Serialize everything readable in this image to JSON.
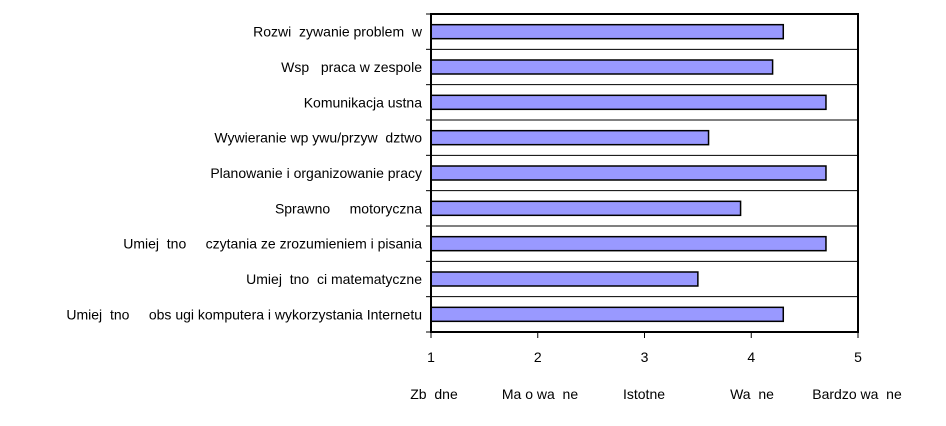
{
  "chart_data": {
    "type": "bar",
    "orientation": "horizontal",
    "categories": [
      "Rozwi  zywanie problem  w",
      "Wsp   praca w zespole",
      "Komunikacja ustna",
      "Wywieranie wp ywu/przyw  dztwo",
      "Planowanie i organizowanie pracy",
      "Sprawno     motoryczna",
      "Umiej  tno     czytania ze zrozumieniem i pisania",
      "Umiej  tno  ci matematyczne",
      "Umiej  tno     obs ugi komputera i wykorzystania Internetu"
    ],
    "values": [
      4.3,
      4.2,
      4.7,
      3.6,
      4.7,
      3.9,
      4.7,
      3.5,
      4.3
    ],
    "xlim": [
      1,
      5
    ],
    "x_ticks": [
      "1",
      "2",
      "3",
      "4",
      "5"
    ],
    "scale_labels": [
      "Zb  dne",
      "Ma o wa  ne",
      "Istotne",
      "Wa  ne",
      "Bardzo wa  ne"
    ],
    "grid": "horizontal",
    "bar_color": "#9999ff",
    "title": "",
    "xlabel": "",
    "ylabel": ""
  }
}
